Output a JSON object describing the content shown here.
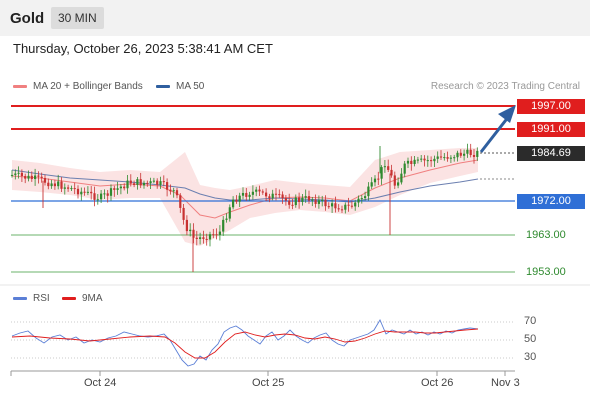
{
  "header": {
    "title": "Gold",
    "timeframe": "30 MIN"
  },
  "timestamp": "Thursday, October 26, 2023 5:38:41 AM CET",
  "legend": {
    "ma20": {
      "label": "MA 20 + Bollinger Bands",
      "color": "#f08080"
    },
    "ma50": {
      "label": "MA 50",
      "color": "#2f5f9f"
    },
    "rsi": {
      "label": "RSI",
      "color": "#5b7fd6"
    },
    "ma9": {
      "label": "9MA",
      "color": "#e01e1e"
    }
  },
  "credit": "Research © 2023 Trading Central",
  "levels": {
    "r2": "1997.00",
    "r1": "1991.00",
    "last": "1984.69",
    "pivot": "1972.00",
    "s1": "1963.00",
    "s2": "1953.00"
  },
  "rsi_axis": [
    "70",
    "50",
    "30"
  ],
  "x_labels": [
    "Oct 24",
    "Oct 25",
    "Oct 26",
    "Nov 3"
  ],
  "colors": {
    "up": "#2f8a2f",
    "down": "#c83232",
    "resistance": "#e01e1e",
    "pivot": "#2f6fd6",
    "support": "#3a9a3a"
  }
}
